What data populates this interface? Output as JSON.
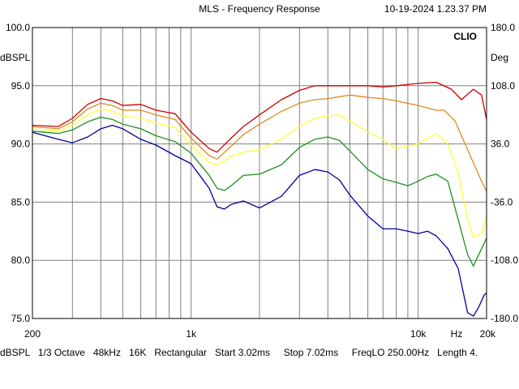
{
  "header": {
    "title": "MLS - Frequency Response",
    "timestamp": "10-19-2024 1.23.37 PM"
  },
  "footer": {
    "status": "dBSPL   1/3 Octave   48kHz   16K   Rectangular   Start 3.02ms     Stop 7.02ms     FreqLO 250.00Hz   Length 4."
  },
  "chart_data": {
    "type": "line",
    "brand": "CLIO",
    "xscale": "log",
    "xlim": [
      200,
      20000
    ],
    "ylim": [
      75,
      100
    ],
    "y2lim": [
      -180,
      180
    ],
    "left_unit": "dBSPL",
    "right_unit": "Deg",
    "x_ticks": [
      "200",
      "1k",
      "10k",
      "20k"
    ],
    "x_unit_label": "Hz",
    "y_ticks": [
      "100.0",
      "95.0",
      "90.0",
      "85.0",
      "80.0",
      "75.0"
    ],
    "y2_ticks": [
      "180.0",
      "108.0",
      "36.0",
      "-36.0",
      "-108.0",
      "-180.0"
    ],
    "grid": true,
    "background": "#ffffff",
    "series": [
      {
        "color": "#cc0000",
        "points": [
          [
            200,
            91.6
          ],
          [
            260,
            91.5
          ],
          [
            300,
            92.2
          ],
          [
            350,
            93.4
          ],
          [
            400,
            93.9
          ],
          [
            450,
            93.7
          ],
          [
            500,
            93.3
          ],
          [
            600,
            93.4
          ],
          [
            700,
            92.9
          ],
          [
            850,
            92.6
          ],
          [
            1000,
            91.0
          ],
          [
            1200,
            89.6
          ],
          [
            1300,
            89.3
          ],
          [
            1500,
            90.5
          ],
          [
            1700,
            91.5
          ],
          [
            2000,
            92.5
          ],
          [
            2500,
            93.8
          ],
          [
            3000,
            94.6
          ],
          [
            3500,
            95.0
          ],
          [
            4000,
            95.0
          ],
          [
            5000,
            95.0
          ],
          [
            6000,
            95.0
          ],
          [
            7000,
            94.9
          ],
          [
            8000,
            95.0
          ],
          [
            10000,
            95.2
          ],
          [
            12000,
            95.3
          ],
          [
            14000,
            94.7
          ],
          [
            15500,
            93.8
          ],
          [
            17500,
            94.7
          ],
          [
            19000,
            94.2
          ],
          [
            20000,
            92.1
          ]
        ]
      },
      {
        "color": "#e08a1e",
        "points": [
          [
            200,
            91.5
          ],
          [
            260,
            91.3
          ],
          [
            300,
            91.9
          ],
          [
            350,
            93.0
          ],
          [
            400,
            93.5
          ],
          [
            450,
            93.3
          ],
          [
            500,
            92.9
          ],
          [
            600,
            92.9
          ],
          [
            700,
            92.5
          ],
          [
            850,
            92.1
          ],
          [
            1000,
            90.5
          ],
          [
            1200,
            89.0
          ],
          [
            1300,
            88.7
          ],
          [
            1500,
            89.8
          ],
          [
            1700,
            90.8
          ],
          [
            2000,
            91.7
          ],
          [
            2500,
            92.8
          ],
          [
            3000,
            93.5
          ],
          [
            3500,
            93.8
          ],
          [
            4000,
            93.9
          ],
          [
            5000,
            94.2
          ],
          [
            6000,
            94.0
          ],
          [
            7000,
            93.9
          ],
          [
            8000,
            93.7
          ],
          [
            10000,
            93.3
          ],
          [
            12000,
            92.9
          ],
          [
            13000,
            92.9
          ],
          [
            14500,
            92.0
          ],
          [
            16500,
            89.5
          ],
          [
            18500,
            87.3
          ],
          [
            20000,
            85.9
          ]
        ]
      },
      {
        "color": "#ffff33",
        "points": [
          [
            200,
            91.3
          ],
          [
            260,
            91.1
          ],
          [
            300,
            91.6
          ],
          [
            350,
            92.5
          ],
          [
            400,
            93.0
          ],
          [
            450,
            92.8
          ],
          [
            500,
            92.4
          ],
          [
            600,
            92.2
          ],
          [
            700,
            91.8
          ],
          [
            850,
            91.4
          ],
          [
            1000,
            89.9
          ],
          [
            1200,
            88.4
          ],
          [
            1300,
            88.2
          ],
          [
            1500,
            88.9
          ],
          [
            1700,
            89.3
          ],
          [
            2000,
            89.5
          ],
          [
            2500,
            90.4
          ],
          [
            3000,
            91.5
          ],
          [
            3500,
            92.2
          ],
          [
            4000,
            92.4
          ],
          [
            4500,
            92.5
          ],
          [
            5000,
            92.0
          ],
          [
            6000,
            91.0
          ],
          [
            7000,
            90.4
          ],
          [
            8000,
            89.6
          ],
          [
            9000,
            89.8
          ],
          [
            10000,
            90.0
          ],
          [
            11000,
            90.5
          ],
          [
            12000,
            90.9
          ],
          [
            13500,
            90.0
          ],
          [
            15000,
            87.5
          ],
          [
            16500,
            83.5
          ],
          [
            17500,
            82.0
          ],
          [
            19000,
            82.3
          ],
          [
            20000,
            83.8
          ]
        ]
      },
      {
        "color": "#1f8f1f",
        "points": [
          [
            200,
            91.1
          ],
          [
            260,
            90.9
          ],
          [
            300,
            91.2
          ],
          [
            350,
            91.9
          ],
          [
            400,
            92.3
          ],
          [
            450,
            92.1
          ],
          [
            500,
            91.7
          ],
          [
            600,
            91.3
          ],
          [
            700,
            90.7
          ],
          [
            850,
            90.2
          ],
          [
            1000,
            89.2
          ],
          [
            1200,
            87.3
          ],
          [
            1300,
            86.2
          ],
          [
            1400,
            86.0
          ],
          [
            1500,
            86.4
          ],
          [
            1700,
            87.3
          ],
          [
            2000,
            87.4
          ],
          [
            2500,
            88.2
          ],
          [
            3000,
            89.7
          ],
          [
            3500,
            90.4
          ],
          [
            4000,
            90.6
          ],
          [
            4500,
            90.3
          ],
          [
            5000,
            89.4
          ],
          [
            6000,
            87.8
          ],
          [
            7000,
            87.0
          ],
          [
            8000,
            86.7
          ],
          [
            9000,
            86.4
          ],
          [
            10000,
            86.8
          ],
          [
            11000,
            87.2
          ],
          [
            12000,
            87.4
          ],
          [
            13500,
            86.8
          ],
          [
            15000,
            83.5
          ],
          [
            16500,
            80.5
          ],
          [
            17500,
            79.5
          ],
          [
            19000,
            81.0
          ],
          [
            20000,
            81.9
          ]
        ]
      },
      {
        "color": "#000099",
        "points": [
          [
            200,
            91.0
          ],
          [
            260,
            90.4
          ],
          [
            300,
            90.1
          ],
          [
            350,
            90.6
          ],
          [
            400,
            91.3
          ],
          [
            450,
            91.6
          ],
          [
            500,
            91.3
          ],
          [
            600,
            90.4
          ],
          [
            700,
            89.9
          ],
          [
            850,
            89.0
          ],
          [
            1000,
            88.3
          ],
          [
            1200,
            86.2
          ],
          [
            1300,
            84.6
          ],
          [
            1400,
            84.4
          ],
          [
            1500,
            84.8
          ],
          [
            1700,
            85.1
          ],
          [
            2000,
            84.5
          ],
          [
            2500,
            85.5
          ],
          [
            3000,
            87.3
          ],
          [
            3500,
            87.8
          ],
          [
            4000,
            87.6
          ],
          [
            4500,
            86.9
          ],
          [
            5000,
            85.6
          ],
          [
            6000,
            83.8
          ],
          [
            7000,
            82.7
          ],
          [
            8000,
            82.7
          ],
          [
            9000,
            82.5
          ],
          [
            10000,
            82.3
          ],
          [
            11000,
            82.5
          ],
          [
            12000,
            82.1
          ],
          [
            13500,
            81.0
          ],
          [
            15000,
            79.3
          ],
          [
            16500,
            75.5
          ],
          [
            17500,
            75.2
          ],
          [
            18500,
            76.0
          ],
          [
            19500,
            77.0
          ],
          [
            20000,
            77.2
          ]
        ]
      }
    ]
  }
}
